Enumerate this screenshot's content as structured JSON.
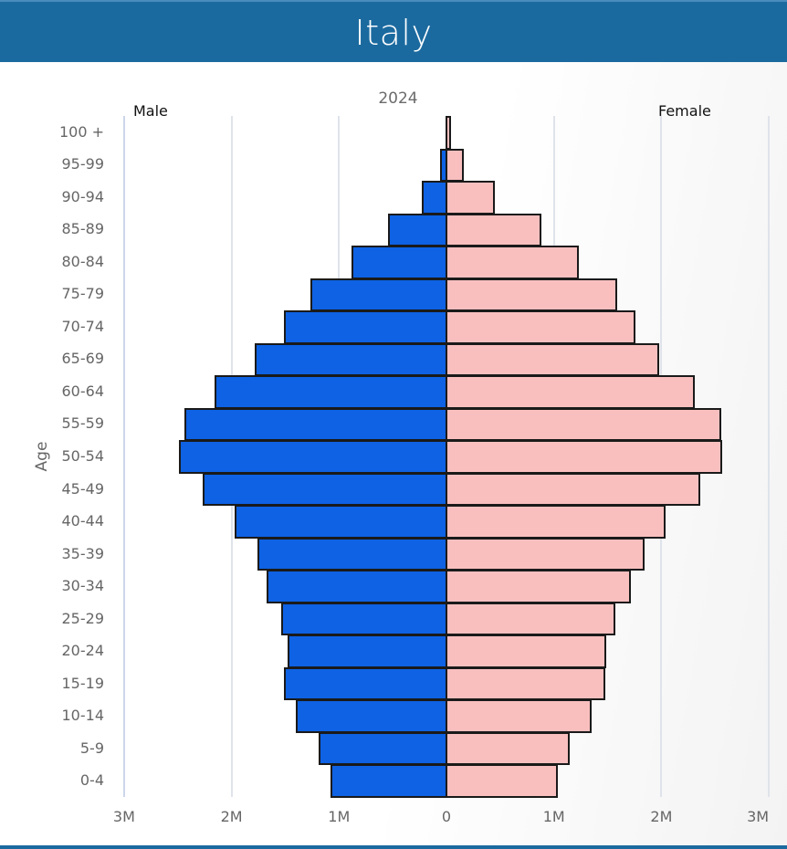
{
  "header": {
    "title": "Italy"
  },
  "chart_data": {
    "type": "bar",
    "subtype": "population-pyramid",
    "title": "Italy",
    "subtitle": "2024",
    "ylabel": "Age",
    "xlabel": "",
    "legend": {
      "left": "Male",
      "right": "Female"
    },
    "colors": {
      "Male": "#0e62e3",
      "Female": "#f9bfbf"
    },
    "x_ticks": [
      "3M",
      "2M",
      "1M",
      "0",
      "1M",
      "2M",
      "3M"
    ],
    "xlim": [
      -3,
      3
    ],
    "units": "millions",
    "grid": true,
    "categories": [
      "100 +",
      "95-99",
      "90-94",
      "85-89",
      "80-84",
      "75-79",
      "70-74",
      "65-69",
      "60-64",
      "55-59",
      "50-54",
      "45-49",
      "40-44",
      "35-39",
      "30-34",
      "25-29",
      "20-24",
      "15-19",
      "10-14",
      "5-9",
      "0-4"
    ],
    "series": [
      {
        "name": "Male",
        "values": [
          0.01,
          0.06,
          0.23,
          0.54,
          0.88,
          1.27,
          1.51,
          1.78,
          2.16,
          2.44,
          2.49,
          2.27,
          1.97,
          1.76,
          1.67,
          1.54,
          1.48,
          1.51,
          1.4,
          1.19,
          1.08
        ]
      },
      {
        "name": "Female",
        "values": [
          0.04,
          0.16,
          0.45,
          0.88,
          1.23,
          1.59,
          1.76,
          1.98,
          2.31,
          2.56,
          2.57,
          2.36,
          2.04,
          1.84,
          1.72,
          1.57,
          1.49,
          1.48,
          1.35,
          1.15,
          1.04
        ]
      }
    ]
  }
}
